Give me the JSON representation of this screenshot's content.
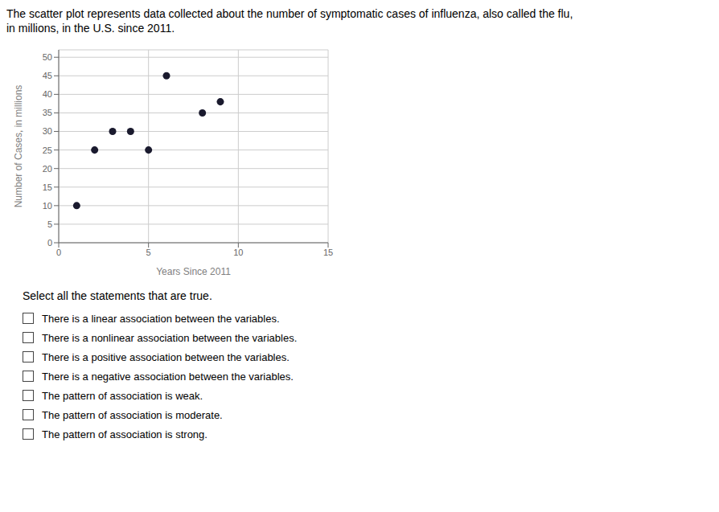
{
  "chart_data": {
    "type": "scatter",
    "title": "The scatter plot represents data collected about the number of symptomatic cases of influenza, also called the flu,",
    "subtitle": "in millions, in the U.S. since 2011.",
    "x_label": "Years Since 2011",
    "y_label": "Number of Cases, in millions",
    "x": [
      1,
      2,
      3,
      4,
      5,
      6,
      8,
      9
    ],
    "values": [
      10,
      25,
      30,
      30,
      25,
      45,
      35,
      38
    ],
    "color": "#1a1a2e",
    "xlim": [
      0,
      15
    ],
    "ylim": [
      0,
      52
    ],
    "xticks": [
      0,
      5,
      10,
      15
    ],
    "yticks": [
      0,
      5,
      10,
      15,
      20,
      25,
      30,
      35,
      40,
      45,
      50
    ],
    "grid": true,
    "annotations": [
      "Select all the statements that are true.",
      "There is a linear association between the variables.",
      "There is a nonlinear association between the variables.",
      "There is a positive association between the variables.",
      "There is a negative association between the variables.",
      "The pattern of association is weak.",
      "The pattern of association is moderate.",
      "The pattern of association is strong."
    ]
  }
}
